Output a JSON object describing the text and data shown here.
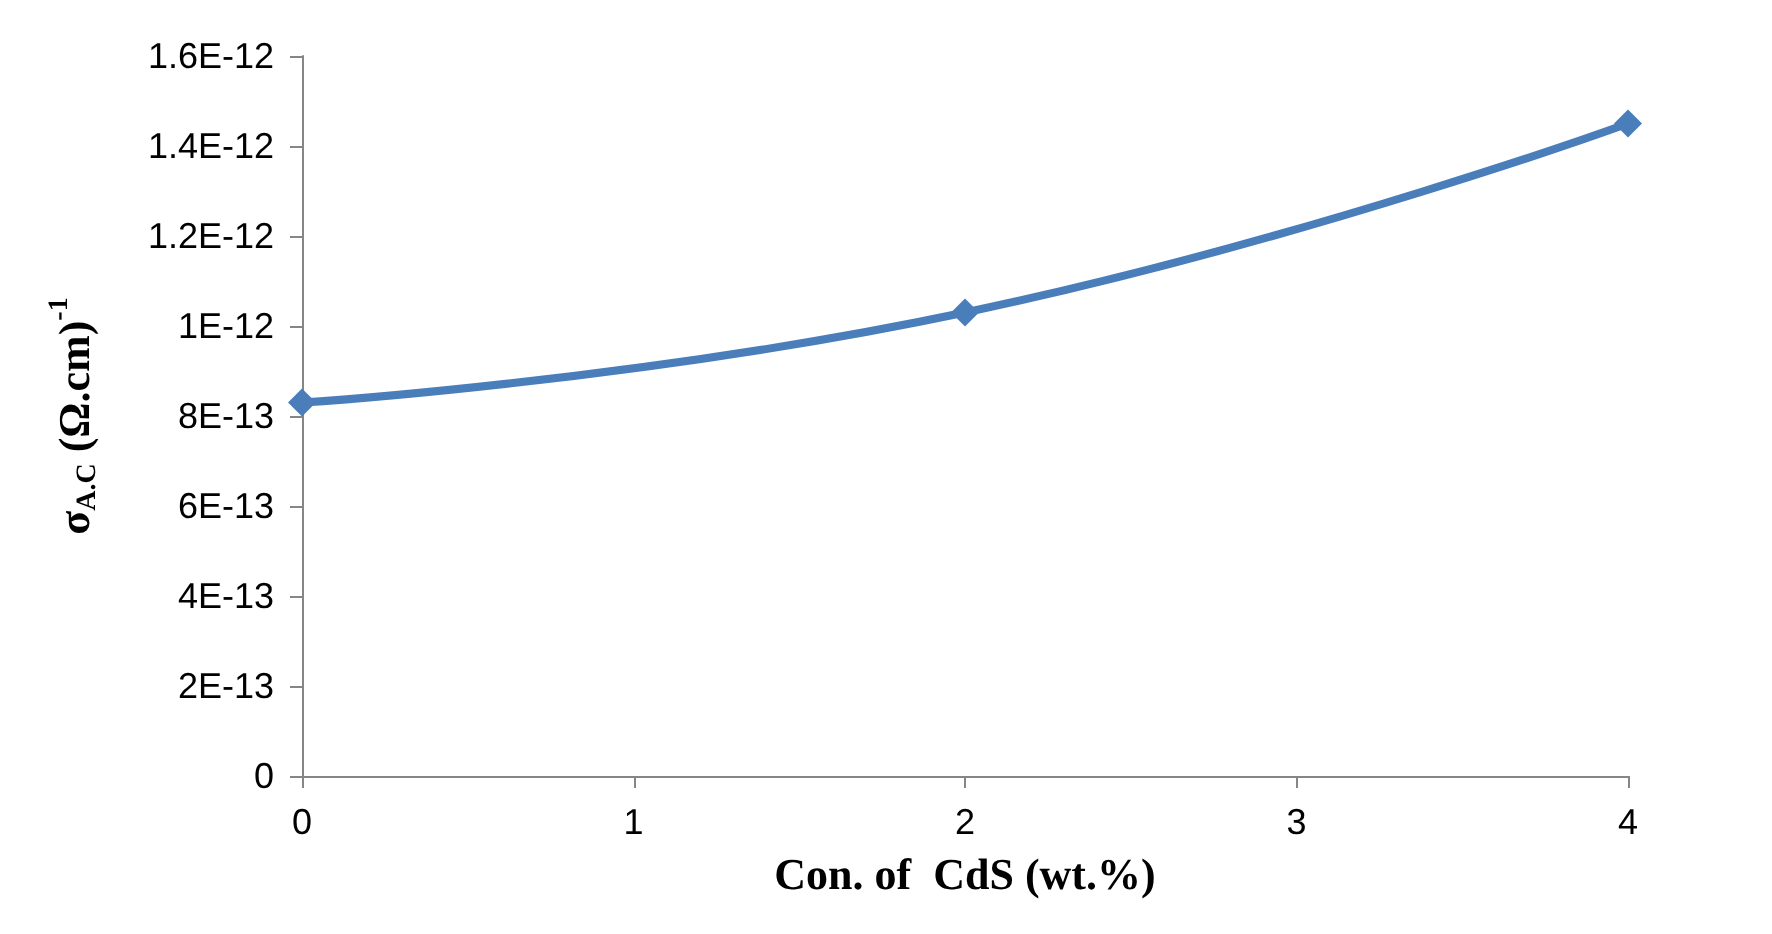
{
  "chart_data": {
    "type": "line",
    "xlabel": "Con. of  CdS (wt.%)",
    "ylabel": "σ$_{A.C}$ (Ω.cm)$^{-1}$",
    "x": [
      0,
      2,
      4
    ],
    "series": [
      {
        "color": "#4a7ebb",
        "values": [
          8.3e-13,
          1.03e-12,
          1.45e-12
        ]
      }
    ],
    "xlim": [
      0,
      4
    ],
    "xticks": [
      0,
      1,
      2,
      3,
      4
    ],
    "ylim": [
      0,
      1.6e-12
    ],
    "yticks": [
      0,
      {
        "value": 2e-13,
        "label": "2E-13"
      },
      {
        "value": 4e-13,
        "label": "4E-13"
      },
      {
        "value": 6e-13,
        "label": "6E-13"
      },
      {
        "value": 8e-13,
        "label": "8E-13"
      },
      {
        "value": 1e-12,
        "label": "1E-12"
      },
      {
        "value": 1.2e-12,
        "label": "1.2E-12"
      },
      {
        "value": 1.4e-12,
        "label": "1.4E-12"
      },
      {
        "value": 1.6e-12,
        "label": "1.6E-12"
      }
    ],
    "grid": false,
    "marker": "diamond",
    "line_style": "solid"
  }
}
